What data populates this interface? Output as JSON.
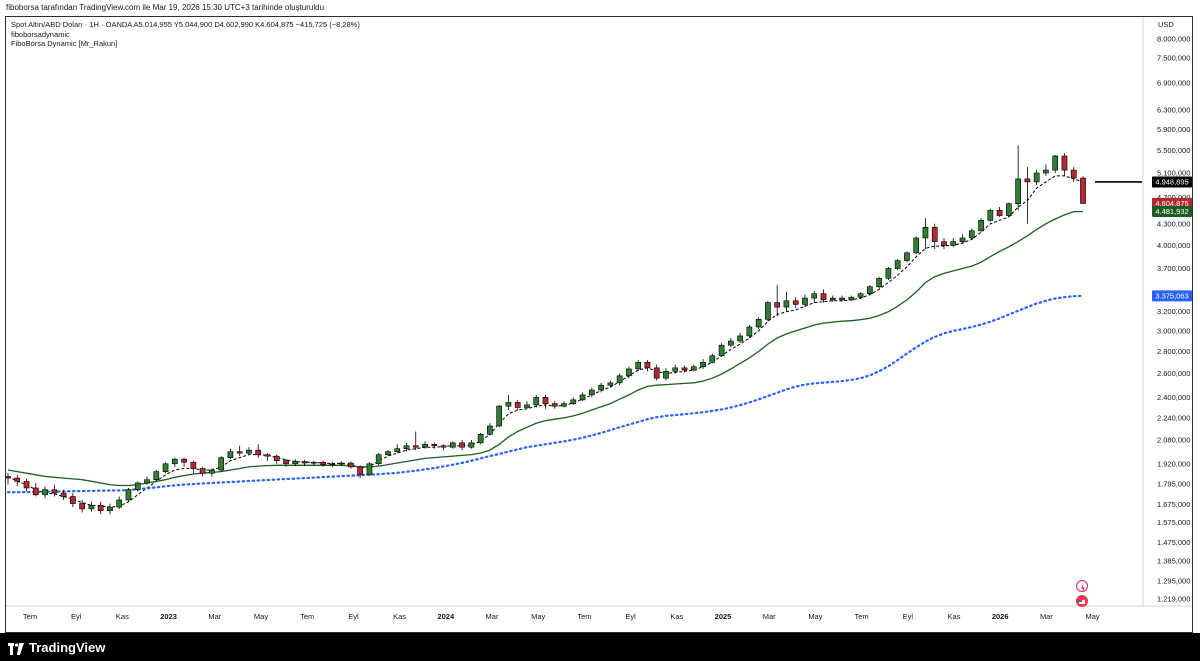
{
  "header": {
    "attribution": "fiboborsa tarafından TradingView.com ile Mar 19, 2026 15:30 UTC+3 tarihinde oluşturuldu"
  },
  "legend": {
    "symbol_line": "Spot Altın/ABD Doları · 1H · OANDA  A5.014,955  Y5.044,900  D4.602,990  K4.604,875  −415,725 (−8,28%)",
    "indicator_1": "fiboborsadynamic",
    "indicator_2": "FiboBorsa Dynamic [Mr_Rakun]"
  },
  "footer": {
    "brand": "TradingView"
  },
  "chart_data": {
    "type": "candlestick",
    "y_axis_scale": "log",
    "currency_label": "USD",
    "y_ticks": [
      "8.000,000",
      "7.500,000",
      "6.900,000",
      "6.300,000",
      "5.900,000",
      "5.500,000",
      "5.100,000",
      "4.700,000",
      "4.300,000",
      "4.000,000",
      "3.700,000",
      "3.400,000",
      "3.200,000",
      "3.000,000",
      "2.800,000",
      "2.600,000",
      "2.400,000",
      "2.240,000",
      "2.080,000",
      "1.920,000",
      "1.795,000",
      "1.675,000",
      "1.575,000",
      "1.475,000",
      "1.385,000",
      "1.295,000",
      "1.219,000"
    ],
    "y_tick_values": [
      8000,
      7500,
      6900,
      6300,
      5900,
      5500,
      5100,
      4700,
      4300,
      4000,
      3700,
      3400,
      3200,
      3000,
      2800,
      2600,
      2400,
      2240,
      2080,
      1920,
      1795,
      1675,
      1575,
      1475,
      1385,
      1295,
      1219
    ],
    "x_ticks": [
      "Tem",
      "Eyl",
      "Kas",
      "2023",
      "Mar",
      "May",
      "Tem",
      "Eyl",
      "Kas",
      "2024",
      "Mar",
      "May",
      "Tem",
      "Eyl",
      "Kas",
      "2025",
      "Mar",
      "May",
      "Tem",
      "Eyl",
      "Kas",
      "2026",
      "Mar",
      "May"
    ],
    "x_tick_bold": [
      false,
      false,
      false,
      true,
      false,
      false,
      false,
      false,
      false,
      true,
      false,
      false,
      false,
      false,
      false,
      true,
      false,
      false,
      false,
      false,
      false,
      true,
      false,
      false
    ],
    "price_labels": [
      {
        "value": 4948.895,
        "text": "4.948,895",
        "bg": "#000000",
        "color": "#ffffff"
      },
      {
        "value": 4604.875,
        "text": "4.604,875",
        "bg": "#b22833",
        "color": "#ffffff"
      },
      {
        "value": 4481.932,
        "text": "4.481,932",
        "bg": "#1b5e20",
        "color": "#ffffff"
      },
      {
        "value": 3375.063,
        "text": "3.375,063",
        "bg": "#2962ff",
        "color": "#ffffff"
      }
    ],
    "horizontal_level": 4948.895,
    "candles": [
      [
        1840,
        1830,
        1860,
        1790
      ],
      [
        1830,
        1810,
        1850,
        1780
      ],
      [
        1810,
        1770,
        1825,
        1750
      ],
      [
        1770,
        1730,
        1800,
        1720
      ],
      [
        1730,
        1760,
        1780,
        1710
      ],
      [
        1760,
        1740,
        1790,
        1720
      ],
      [
        1740,
        1720,
        1760,
        1700
      ],
      [
        1720,
        1680,
        1740,
        1660
      ],
      [
        1680,
        1650,
        1700,
        1630
      ],
      [
        1650,
        1670,
        1690,
        1635
      ],
      [
        1670,
        1640,
        1690,
        1620
      ],
      [
        1640,
        1660,
        1680,
        1620
      ],
      [
        1660,
        1700,
        1720,
        1650
      ],
      [
        1700,
        1760,
        1770,
        1690
      ],
      [
        1760,
        1800,
        1810,
        1750
      ],
      [
        1800,
        1820,
        1840,
        1790
      ],
      [
        1820,
        1870,
        1880,
        1810
      ],
      [
        1870,
        1920,
        1930,
        1860
      ],
      [
        1920,
        1950,
        1960,
        1900
      ],
      [
        1950,
        1930,
        1960,
        1900
      ],
      [
        1930,
        1890,
        1940,
        1860
      ],
      [
        1890,
        1860,
        1900,
        1840
      ],
      [
        1860,
        1880,
        1890,
        1840
      ],
      [
        1880,
        1960,
        1970,
        1870
      ],
      [
        1960,
        2000,
        2020,
        1950
      ],
      [
        2000,
        1990,
        2040,
        1970
      ],
      [
        1990,
        2010,
        2030,
        1980
      ],
      [
        2010,
        1980,
        2050,
        1960
      ],
      [
        1980,
        1970,
        1990,
        1940
      ],
      [
        1970,
        1940,
        1980,
        1920
      ],
      [
        1940,
        1920,
        1950,
        1900
      ],
      [
        1920,
        1935,
        1950,
        1910
      ],
      [
        1935,
        1925,
        1945,
        1905
      ],
      [
        1925,
        1930,
        1940,
        1910
      ],
      [
        1930,
        1915,
        1940,
        1900
      ],
      [
        1915,
        1920,
        1930,
        1900
      ],
      [
        1920,
        1925,
        1935,
        1905
      ],
      [
        1925,
        1900,
        1935,
        1890
      ],
      [
        1900,
        1850,
        1910,
        1830
      ],
      [
        1850,
        1920,
        1930,
        1845
      ],
      [
        1920,
        1980,
        1990,
        1910
      ],
      [
        1980,
        2000,
        2010,
        1970
      ],
      [
        2000,
        2020,
        2050,
        1990
      ],
      [
        2020,
        2040,
        2060,
        2000
      ],
      [
        2040,
        2030,
        2140,
        2010
      ],
      [
        2030,
        2050,
        2070,
        2020
      ],
      [
        2050,
        2040,
        2060,
        2020
      ],
      [
        2040,
        2030,
        2050,
        2010
      ],
      [
        2030,
        2060,
        2070,
        2020
      ],
      [
        2060,
        2030,
        2080,
        2010
      ],
      [
        2030,
        2060,
        2080,
        2020
      ],
      [
        2060,
        2120,
        2130,
        2050
      ],
      [
        2120,
        2180,
        2200,
        2110
      ],
      [
        2180,
        2330,
        2340,
        2170
      ],
      [
        2330,
        2360,
        2420,
        2300
      ],
      [
        2360,
        2320,
        2380,
        2300
      ],
      [
        2320,
        2340,
        2370,
        2310
      ],
      [
        2340,
        2400,
        2420,
        2320
      ],
      [
        2400,
        2350,
        2420,
        2310
      ],
      [
        2350,
        2330,
        2370,
        2310
      ],
      [
        2330,
        2350,
        2370,
        2320
      ],
      [
        2350,
        2380,
        2400,
        2340
      ],
      [
        2380,
        2420,
        2440,
        2370
      ],
      [
        2420,
        2460,
        2480,
        2400
      ],
      [
        2460,
        2500,
        2520,
        2440
      ],
      [
        2500,
        2520,
        2540,
        2480
      ],
      [
        2520,
        2580,
        2600,
        2500
      ],
      [
        2580,
        2640,
        2660,
        2560
      ],
      [
        2640,
        2700,
        2720,
        2620
      ],
      [
        2700,
        2650,
        2720,
        2620
      ],
      [
        2650,
        2560,
        2680,
        2540
      ],
      [
        2560,
        2620,
        2650,
        2540
      ],
      [
        2620,
        2650,
        2680,
        2600
      ],
      [
        2650,
        2630,
        2670,
        2610
      ],
      [
        2630,
        2660,
        2680,
        2620
      ],
      [
        2660,
        2700,
        2730,
        2640
      ],
      [
        2700,
        2760,
        2780,
        2690
      ],
      [
        2760,
        2860,
        2880,
        2750
      ],
      [
        2860,
        2900,
        2930,
        2840
      ],
      [
        2900,
        2950,
        2980,
        2880
      ],
      [
        2950,
        3040,
        3060,
        2930
      ],
      [
        3040,
        3120,
        3140,
        3020
      ],
      [
        3120,
        3300,
        3320,
        3100
      ],
      [
        3300,
        3250,
        3500,
        3150
      ],
      [
        3250,
        3320,
        3420,
        3200
      ],
      [
        3320,
        3280,
        3360,
        3240
      ],
      [
        3280,
        3350,
        3390,
        3250
      ],
      [
        3350,
        3400,
        3430,
        3300
      ],
      [
        3400,
        3330,
        3450,
        3300
      ],
      [
        3330,
        3350,
        3380,
        3310
      ],
      [
        3350,
        3330,
        3380,
        3310
      ],
      [
        3330,
        3360,
        3380,
        3320
      ],
      [
        3360,
        3400,
        3420,
        3340
      ],
      [
        3400,
        3480,
        3500,
        3380
      ],
      [
        3480,
        3580,
        3600,
        3460
      ],
      [
        3580,
        3700,
        3720,
        3560
      ],
      [
        3700,
        3800,
        3820,
        3680
      ],
      [
        3800,
        3900,
        3920,
        3780
      ],
      [
        3900,
        4100,
        4120,
        3880
      ],
      [
        4100,
        4250,
        4380,
        3950
      ],
      [
        4250,
        4050,
        4300,
        3950
      ],
      [
        4050,
        4000,
        4100,
        3950
      ],
      [
        4000,
        4050,
        4100,
        3980
      ],
      [
        4050,
        4100,
        4150,
        4020
      ],
      [
        4100,
        4200,
        4230,
        4080
      ],
      [
        4200,
        4350,
        4380,
        4180
      ],
      [
        4350,
        4500,
        4520,
        4330
      ],
      [
        4500,
        4420,
        4550,
        4400
      ],
      [
        4420,
        4600,
        4620,
        4400
      ],
      [
        4600,
        5000,
        5600,
        4500
      ],
      [
        5000,
        4950,
        5200,
        4300
      ],
      [
        4950,
        5100,
        5150,
        4900
      ],
      [
        5100,
        5150,
        5250,
        5050
      ],
      [
        5150,
        5400,
        5420,
        5100
      ],
      [
        5400,
        5150,
        5450,
        5050
      ],
      [
        5150,
        5014,
        5200,
        4950
      ],
      [
        5014,
        4604,
        5044,
        4602
      ]
    ],
    "series": [
      {
        "name": "fiboborsadynamic",
        "style": "dashed-black",
        "values": [
          1840,
          1810,
          1790,
          1760,
          1740,
          1735,
          1720,
          1705,
          1685,
          1670,
          1665,
          1660,
          1665,
          1690,
          1730,
          1770,
          1810,
          1850,
          1880,
          1890,
          1890,
          1880,
          1880,
          1900,
          1940,
          1960,
          1980,
          1980,
          1975,
          1960,
          1945,
          1935,
          1930,
          1928,
          1925,
          1922,
          1922,
          1915,
          1895,
          1900,
          1940,
          1970,
          1990,
          2010,
          2020,
          2030,
          2030,
          2035,
          2040,
          2040,
          2045,
          2070,
          2120,
          2200,
          2270,
          2300,
          2310,
          2330,
          2340,
          2330,
          2335,
          2355,
          2385,
          2420,
          2455,
          2485,
          2530,
          2580,
          2630,
          2650,
          2620,
          2600,
          2610,
          2620,
          2630,
          2660,
          2700,
          2760,
          2820,
          2870,
          2930,
          3000,
          3100,
          3170,
          3200,
          3220,
          3260,
          3300,
          3310,
          3320,
          3320,
          3330,
          3350,
          3390,
          3450,
          3530,
          3620,
          3720,
          3850,
          3960,
          3990,
          3990,
          4000,
          4030,
          4080,
          4180,
          4300,
          4350,
          4400,
          4550,
          4650,
          4850,
          4950,
          5050,
          5050,
          5000,
          4948.895
        ]
      },
      {
        "name": "",
        "style": "solid-green",
        "values": [
          1880,
          1870,
          1860,
          1850,
          1840,
          1835,
          1830,
          1825,
          1820,
          1810,
          1800,
          1790,
          1785,
          1785,
          1790,
          1800,
          1810,
          1820,
          1835,
          1845,
          1855,
          1860,
          1865,
          1870,
          1880,
          1890,
          1900,
          1905,
          1908,
          1910,
          1910,
          1910,
          1910,
          1910,
          1910,
          1910,
          1910,
          1905,
          1900,
          1900,
          1905,
          1915,
          1925,
          1935,
          1945,
          1955,
          1960,
          1965,
          1970,
          1975,
          1980,
          1990,
          2010,
          2050,
          2100,
          2140,
          2170,
          2200,
          2220,
          2230,
          2240,
          2255,
          2275,
          2300,
          2325,
          2350,
          2385,
          2420,
          2460,
          2490,
          2500,
          2505,
          2510,
          2515,
          2520,
          2535,
          2560,
          2595,
          2640,
          2690,
          2740,
          2800,
          2870,
          2930,
          2970,
          3000,
          3030,
          3060,
          3080,
          3090,
          3100,
          3105,
          3115,
          3130,
          3160,
          3200,
          3260,
          3330,
          3420,
          3530,
          3600,
          3640,
          3670,
          3700,
          3730,
          3780,
          3850,
          3920,
          3980,
          4050,
          4130,
          4220,
          4300,
          4370,
          4430,
          4480,
          4481.932
        ]
      },
      {
        "name": "",
        "style": "dotted-blue",
        "values": [
          1745,
          1745,
          1746,
          1747,
          1748,
          1749,
          1750,
          1751,
          1752,
          1753,
          1754,
          1755,
          1756,
          1758,
          1762,
          1768,
          1774,
          1780,
          1786,
          1790,
          1794,
          1797,
          1800,
          1803,
          1806,
          1809,
          1812,
          1815,
          1818,
          1821,
          1824,
          1827,
          1830,
          1833,
          1836,
          1839,
          1842,
          1845,
          1848,
          1851,
          1854,
          1858,
          1863,
          1869,
          1876,
          1884,
          1893,
          1903,
          1914,
          1926,
          1940,
          1955,
          1970,
          1985,
          2000,
          2015,
          2030,
          2040,
          2050,
          2060,
          2070,
          2082,
          2096,
          2112,
          2130,
          2150,
          2170,
          2190,
          2210,
          2230,
          2245,
          2255,
          2262,
          2268,
          2275,
          2283,
          2293,
          2305,
          2320,
          2338,
          2360,
          2384,
          2410,
          2438,
          2465,
          2488,
          2505,
          2515,
          2522,
          2528,
          2535,
          2545,
          2560,
          2585,
          2620,
          2665,
          2720,
          2780,
          2840,
          2895,
          2940,
          2975,
          3000,
          3020,
          3040,
          3065,
          3095,
          3130,
          3170,
          3210,
          3250,
          3290,
          3320,
          3345,
          3360,
          3372,
          3375.063
        ]
      }
    ]
  }
}
